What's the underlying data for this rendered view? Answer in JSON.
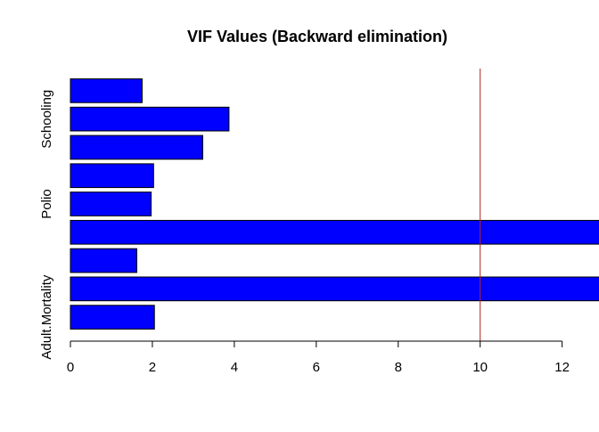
{
  "chart_data": {
    "type": "bar",
    "orientation": "horizontal",
    "title": "VIF Values (Backward elimination)",
    "xlabel": "",
    "ylabel": "",
    "xlim": [
      0,
      12.9
    ],
    "xticks": [
      0,
      2,
      4,
      6,
      8,
      10,
      12
    ],
    "categories": [
      "Adult.Mortality",
      "",
      "",
      "",
      "Polio",
      "",
      "",
      "Schooling",
      ""
    ],
    "values": [
      2.05,
      13.5,
      1.62,
      13.5,
      1.97,
      2.03,
      3.23,
      3.87,
      1.75
    ],
    "bar_color": "#0000FF",
    "bar_border_color": "#000000",
    "reference_line": {
      "x": 10,
      "color": "#B22222"
    },
    "grid": false,
    "legend": "none"
  }
}
